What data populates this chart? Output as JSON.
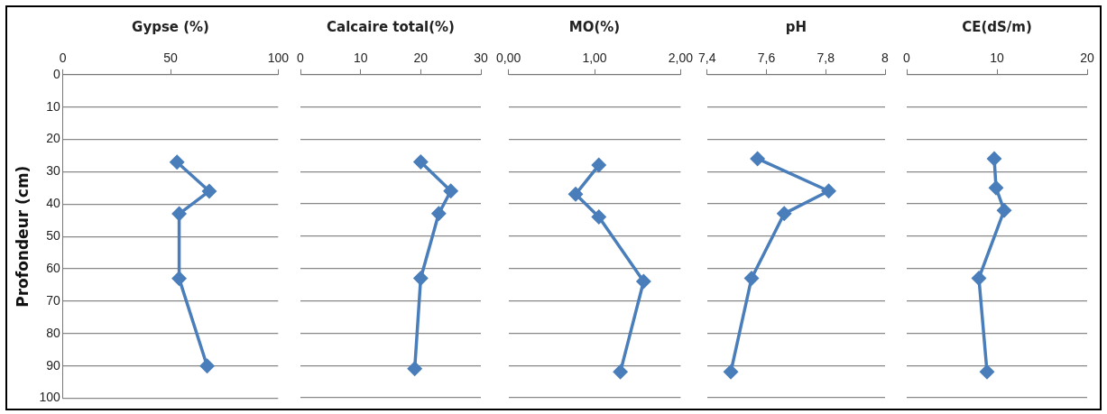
{
  "chart_data": [
    {
      "type": "line",
      "xlabel": "Gypse (%)",
      "ylabel": "Profondeur (cm)",
      "x": [
        53,
        68,
        54,
        54,
        67
      ],
      "values": [
        27,
        36,
        43,
        63,
        90
      ],
      "color": "#4a7ebb",
      "xlim": [
        0,
        100
      ],
      "xticks": [
        0,
        50,
        100
      ],
      "ylim": [
        100,
        0
      ],
      "yticks": [
        0,
        10,
        20,
        30,
        40,
        50,
        60,
        70,
        80,
        90,
        100
      ],
      "grid": "y",
      "marker": "diamond"
    },
    {
      "type": "line",
      "xlabel": "Calcaire total(%)",
      "x": [
        20,
        25,
        23,
        20,
        19
      ],
      "values": [
        27,
        36,
        43,
        63,
        91
      ],
      "color": "#4a7ebb",
      "xlim": [
        0,
        30
      ],
      "xticks": [
        0,
        10,
        20,
        30
      ],
      "ylim": [
        100,
        0
      ],
      "yticks": [
        0,
        10,
        20,
        30,
        40,
        50,
        60,
        70,
        80,
        90,
        100
      ],
      "grid": "y",
      "marker": "diamond",
      "tick_labels": "x"
    },
    {
      "type": "line",
      "xlabel": "MO(%)",
      "x": [
        1.05,
        0.78,
        1.05,
        1.57,
        1.3
      ],
      "values": [
        28,
        37,
        44,
        64,
        92
      ],
      "color": "#4a7ebb",
      "xlim": [
        0,
        2
      ],
      "xticks": [
        {
          "value": 0,
          "label": "0,00"
        },
        {
          "value": 1,
          "label": "1,00"
        },
        {
          "value": 2,
          "label": "2,00"
        }
      ],
      "ylim": [
        100,
        0
      ],
      "yticks": [
        0,
        10,
        20,
        30,
        40,
        50,
        60,
        70,
        80,
        90,
        100
      ],
      "grid": "y",
      "marker": "diamond",
      "tick_labels": "x"
    },
    {
      "type": "line",
      "xlabel": "pH",
      "x": [
        7.57,
        7.81,
        7.66,
        7.55,
        7.48
      ],
      "values": [
        26,
        36,
        43,
        63,
        92
      ],
      "color": "#4a7ebb",
      "xlim": [
        7.4,
        8
      ],
      "xticks": [
        {
          "value": 7.4,
          "label": "7,4"
        },
        {
          "value": 7.6,
          "label": "7,6"
        },
        {
          "value": 7.8,
          "label": "7,8"
        },
        8
      ],
      "ylim": [
        100,
        0
      ],
      "yticks": [
        0,
        10,
        20,
        30,
        40,
        50,
        60,
        70,
        80,
        90,
        100
      ],
      "grid": "y",
      "marker": "diamond",
      "tick_labels": "x"
    },
    {
      "type": "line",
      "xlabel": "CE(dS/m)",
      "x": [
        9.7,
        9.9,
        10.8,
        8,
        8.9
      ],
      "values": [
        26,
        35,
        42,
        63,
        92
      ],
      "color": "#4a7ebb",
      "xlim": [
        0,
        20
      ],
      "xticks": [
        0,
        10,
        20
      ],
      "ylim": [
        100,
        0
      ],
      "yticks": [
        0,
        10,
        20,
        30,
        40,
        50,
        60,
        70,
        80,
        90,
        100
      ],
      "grid": "y",
      "marker": "diamond",
      "tick_labels": "x"
    }
  ]
}
